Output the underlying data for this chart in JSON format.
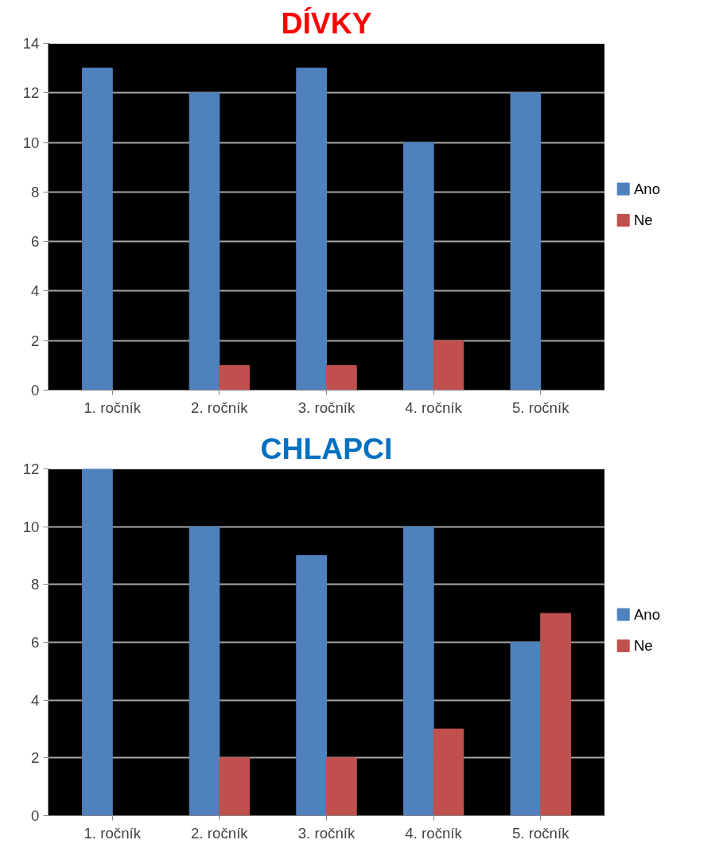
{
  "chart_data": [
    {
      "type": "bar",
      "title": "DÍVKY",
      "categories": [
        "1. ročník",
        "2. ročník",
        "3. ročník",
        "4. ročník",
        "5. ročník"
      ],
      "series": [
        {
          "name": "Ano",
          "color": "#4f81bd",
          "values": [
            13,
            12,
            13,
            10,
            12
          ]
        },
        {
          "name": "Ne",
          "color": "#c0504d",
          "values": [
            0,
            1,
            1,
            2,
            0
          ]
        }
      ],
      "ylim": [
        0,
        14
      ],
      "yticks": [
        0,
        2,
        4,
        6,
        8,
        10,
        12,
        14
      ],
      "grid": "y",
      "legend": "right"
    },
    {
      "type": "bar",
      "title": "CHLAPCI",
      "categories": [
        "1. ročník",
        "2. ročník",
        "3. ročník",
        "4. ročník",
        "5. ročník"
      ],
      "series": [
        {
          "name": "Ano",
          "color": "#4f81bd",
          "values": [
            12,
            10,
            9,
            10,
            6
          ]
        },
        {
          "name": "Ne",
          "color": "#c0504d",
          "values": [
            0,
            2,
            2,
            3,
            7
          ]
        }
      ],
      "ylim": [
        0,
        12
      ],
      "yticks": [
        0,
        2,
        4,
        6,
        8,
        10,
        12
      ],
      "grid": "y",
      "legend": "right"
    }
  ]
}
